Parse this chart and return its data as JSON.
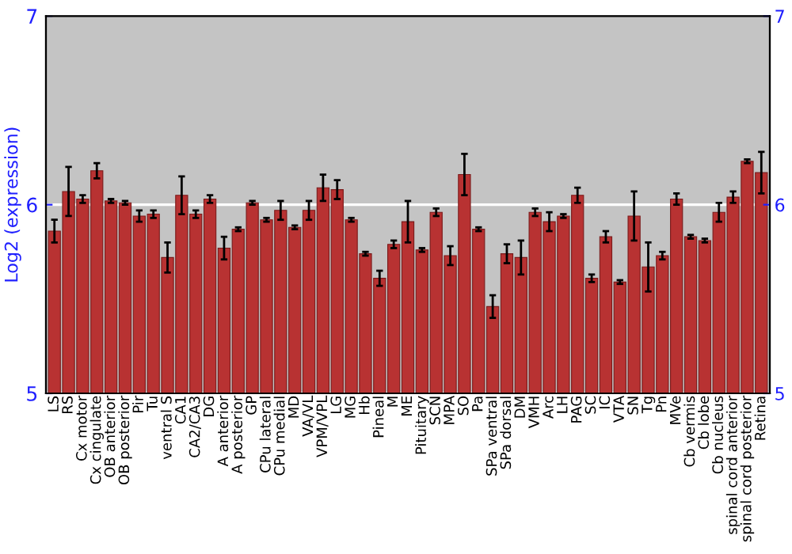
{
  "chart_data": {
    "type": "bar",
    "ylabel": "Log2 (expression)",
    "categories": [
      "LS",
      "RS",
      "Cx motor",
      "Cx cingulate",
      "OB anterior",
      "OB posterior",
      "Pir",
      "Tu",
      "ventral S",
      "CA1",
      "CA2/CA3",
      "DG",
      "A anterior",
      "A posterior",
      "GP",
      "CPu lateral",
      "CPu medial",
      "MD",
      "VA/VL",
      "VPM/VPL",
      "LG",
      "MG",
      "Hb",
      "Pineal",
      "M",
      "ME",
      "Pituitary",
      "SCN",
      "MPA",
      "SO",
      "Pa",
      "SPa ventral",
      "SPa dorsal",
      "DM",
      "VMH",
      "Arc",
      "LH",
      "PAG",
      "SC",
      "IC",
      "VTA",
      "SN",
      "Tg",
      "Pn",
      "MVe",
      "Cb vermis",
      "Cb lobe",
      "Cb nucleus",
      "spinal cord anterior",
      "spinal cord posterior",
      "Retina"
    ],
    "series": [
      {
        "color": "#b83232",
        "values": [
          5.86,
          6.07,
          6.03,
          6.18,
          6.02,
          6.01,
          5.94,
          5.95,
          5.72,
          6.05,
          5.95,
          6.03,
          5.77,
          5.87,
          6.01,
          5.92,
          5.97,
          5.88,
          5.97,
          6.09,
          6.08,
          5.92,
          5.74,
          5.61,
          5.79,
          5.91,
          5.76,
          5.96,
          5.73,
          6.16,
          5.87,
          5.46,
          5.74,
          5.72,
          5.96,
          5.91,
          5.94,
          6.05,
          5.61,
          5.83,
          5.59,
          5.94,
          5.67,
          5.73,
          6.03,
          5.83,
          5.81,
          5.96,
          6.04,
          6.23,
          6.17
        ],
        "errors": [
          0.06,
          0.13,
          0.02,
          0.04,
          0.01,
          0.01,
          0.03,
          0.02,
          0.08,
          0.1,
          0.02,
          0.02,
          0.06,
          0.01,
          0.01,
          0.01,
          0.05,
          0.01,
          0.05,
          0.07,
          0.05,
          0.01,
          0.01,
          0.04,
          0.02,
          0.11,
          0.01,
          0.02,
          0.05,
          0.11,
          0.01,
          0.06,
          0.05,
          0.09,
          0.02,
          0.05,
          0.01,
          0.04,
          0.02,
          0.03,
          0.01,
          0.13,
          0.13,
          0.02,
          0.03,
          0.01,
          0.01,
          0.05,
          0.03,
          0.01,
          0.11
        ]
      }
    ],
    "ylim": [
      5,
      7
    ],
    "yticks": [
      5,
      6,
      7
    ],
    "y2lim": [
      5,
      7
    ],
    "y2ticks": [
      5,
      6,
      7
    ],
    "grid": "y"
  }
}
